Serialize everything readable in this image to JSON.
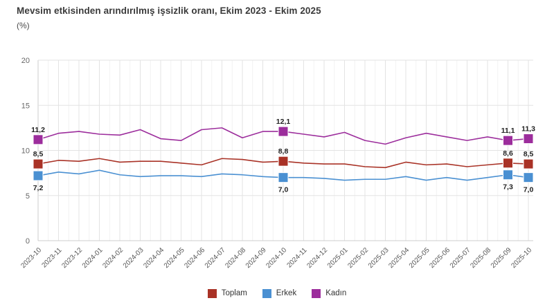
{
  "title": "Mevsim etkisinden arındırılmış işsizlik oranı, Ekim 2023 - Ekim 2025",
  "subtitle": "(%)",
  "chart_data": {
    "type": "line",
    "x": [
      "2023-10",
      "2023-11",
      "2023-12",
      "2024-01",
      "2024-02",
      "2024-03",
      "2024-04",
      "2024-05",
      "2024-06",
      "2024-07",
      "2024-08",
      "2024-09",
      "2024-10",
      "2024-11",
      "2024-12",
      "2025-01",
      "2025-02",
      "2025-03",
      "2025-04",
      "2025-05",
      "2025-06",
      "2025-07",
      "2025-08",
      "2025-09",
      "2025-10"
    ],
    "ylim": [
      0,
      20
    ],
    "yticks": [
      0,
      5,
      10,
      15,
      20
    ],
    "grid": true,
    "legend_position": "bottom",
    "marker_indices": [
      0,
      12,
      23,
      24
    ],
    "series": [
      {
        "name": "Toplam",
        "color": "#a93226",
        "label_side": "above",
        "values": [
          8.5,
          8.9,
          8.8,
          9.1,
          8.7,
          8.8,
          8.8,
          8.6,
          8.4,
          9.1,
          9.0,
          8.7,
          8.8,
          8.6,
          8.5,
          8.5,
          8.2,
          8.1,
          8.7,
          8.4,
          8.5,
          8.2,
          8.4,
          8.6,
          8.5
        ]
      },
      {
        "name": "Erkek",
        "color": "#4a90d2",
        "label_side": "below",
        "values": [
          7.2,
          7.6,
          7.4,
          7.8,
          7.3,
          7.1,
          7.2,
          7.2,
          7.1,
          7.4,
          7.3,
          7.1,
          7.0,
          7.0,
          6.9,
          6.7,
          6.8,
          6.8,
          7.1,
          6.7,
          7.0,
          6.7,
          7.0,
          7.3,
          7.0
        ]
      },
      {
        "name": "Kadın",
        "color": "#9c2d9c",
        "label_side": "above",
        "values": [
          11.2,
          11.9,
          12.1,
          11.8,
          11.7,
          12.3,
          11.3,
          11.1,
          12.3,
          12.5,
          11.4,
          12.1,
          12.1,
          11.8,
          11.5,
          12.0,
          11.1,
          10.7,
          11.4,
          11.9,
          11.5,
          11.1,
          11.5,
          11.1,
          11.3
        ]
      }
    ],
    "labeled_points": [
      {
        "index": 0,
        "labels": {
          "Toplam": "8,5",
          "Erkek": "7,2",
          "Kadın": "11,2"
        }
      },
      {
        "index": 12,
        "labels": {
          "Toplam": "8,8",
          "Erkek": "7,0",
          "Kadın": "12,1"
        }
      },
      {
        "index": 23,
        "labels": {
          "Toplam": "8,6",
          "Erkek": "7,3",
          "Kadın": "11,1"
        }
      },
      {
        "index": 24,
        "labels": {
          "Toplam": "8,5",
          "Erkek": "7,0",
          "Kadın": "11,3"
        }
      }
    ],
    "colors": {
      "grid_major": "#e3e3e3",
      "grid_minor": "#f2f2f2",
      "axis": "#cccccc",
      "tick_label": "#666666",
      "value_label": "#1f1f1f"
    }
  }
}
